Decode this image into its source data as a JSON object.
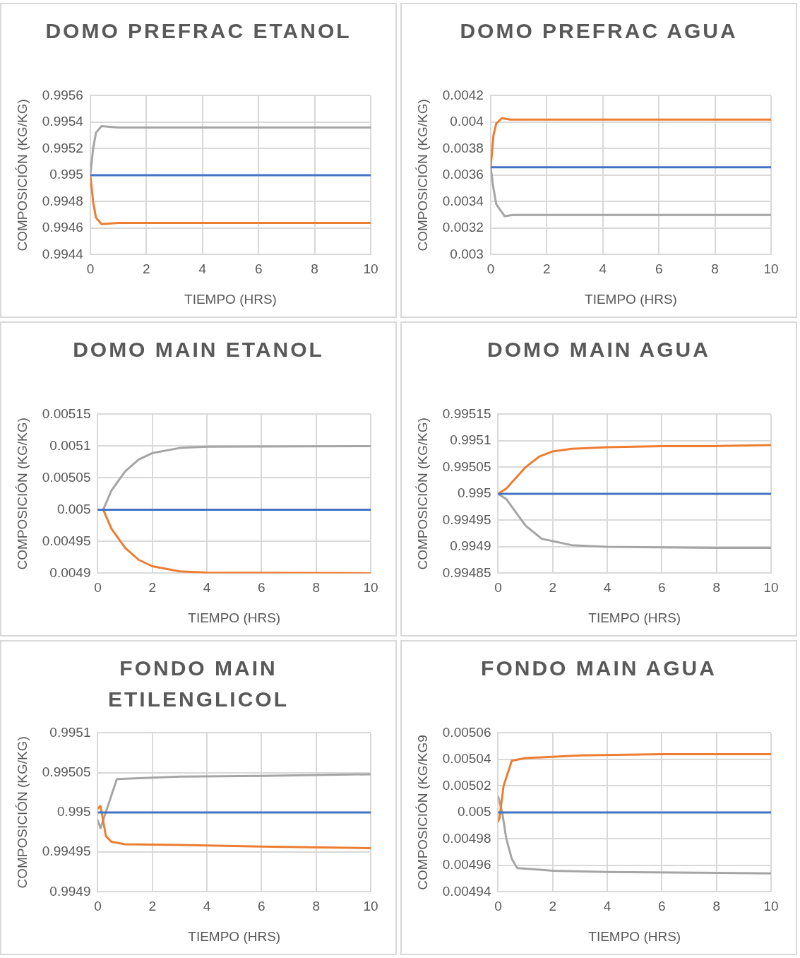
{
  "chart_data": [
    {
      "type": "line",
      "title": "DOMO PREFRAC ETANOL",
      "xlabel": "TIEMPO (HRS)",
      "ylabel": "COMPOSICIÓN (KG/KG)",
      "xlim": [
        0,
        10
      ],
      "xticks": [
        0,
        2,
        4,
        6,
        8,
        10
      ],
      "ylim": [
        0.9944,
        0.9956
      ],
      "yticks": [
        0.9944,
        0.9946,
        0.9948,
        0.995,
        0.9952,
        0.9954,
        0.9956
      ],
      "grid": true,
      "marker": "none",
      "line_style": "solid",
      "series": [
        {
          "color": "#4472c4",
          "x": [
            0,
            10
          ],
          "values": [
            0.995,
            0.995
          ]
        },
        {
          "color": "#ed7d31",
          "x": [
            0,
            0.1,
            0.2,
            0.4,
            1,
            10
          ],
          "values": [
            0.995,
            0.9948,
            0.99468,
            0.99463,
            0.99464,
            0.99464
          ]
        },
        {
          "color": "#a5a5a5",
          "x": [
            0,
            0.1,
            0.2,
            0.4,
            1,
            10
          ],
          "values": [
            0.995,
            0.9952,
            0.99532,
            0.99537,
            0.99536,
            0.99536
          ]
        }
      ]
    },
    {
      "type": "line",
      "title": "DOMO PREFRAC AGUA",
      "xlabel": "TIEMPO (HRS)",
      "ylabel": "COMPOSICIÓN (KG/KG)",
      "xlim": [
        0,
        10
      ],
      "xticks": [
        0,
        2,
        4,
        6,
        8,
        10
      ],
      "ylim": [
        0.003,
        0.0042
      ],
      "yticks": [
        0.003,
        0.0032,
        0.0034,
        0.0036,
        0.0038,
        0.004,
        0.0042
      ],
      "grid": true,
      "marker": "none",
      "line_style": "solid",
      "series": [
        {
          "color": "#4472c4",
          "x": [
            0,
            10
          ],
          "values": [
            0.00366,
            0.00366
          ]
        },
        {
          "color": "#ed7d31",
          "x": [
            0,
            0.1,
            0.2,
            0.4,
            0.7,
            10
          ],
          "values": [
            0.00366,
            0.0039,
            0.00399,
            0.00403,
            0.00402,
            0.00402
          ]
        },
        {
          "color": "#a5a5a5",
          "x": [
            0,
            0.1,
            0.2,
            0.5,
            0.8,
            10
          ],
          "values": [
            0.00366,
            0.0035,
            0.00338,
            0.00329,
            0.0033,
            0.0033
          ]
        }
      ]
    },
    {
      "type": "line",
      "title": "DOMO MAIN ETANOL",
      "xlabel": "TIEMPO (HRS)",
      "ylabel": "COMPOSICIÓN (KG/KG)",
      "xlim": [
        0,
        10
      ],
      "xticks": [
        0,
        2,
        4,
        6,
        8,
        10
      ],
      "ylim": [
        0.0049,
        0.00515
      ],
      "yticks": [
        0.0049,
        0.00495,
        0.005,
        0.00505,
        0.0051,
        0.00515
      ],
      "grid": true,
      "marker": "none",
      "line_style": "solid",
      "series": [
        {
          "color": "#4472c4",
          "x": [
            0,
            10
          ],
          "values": [
            0.005,
            0.005
          ]
        },
        {
          "color": "#ed7d31",
          "x": [
            0,
            0.2,
            0.5,
            1,
            1.5,
            2,
            3,
            4,
            10
          ],
          "values": [
            0.005,
            0.005,
            0.00497,
            0.00494,
            0.004921,
            0.004911,
            0.004903,
            0.004901,
            0.0049
          ]
        },
        {
          "color": "#a5a5a5",
          "x": [
            0,
            0.2,
            0.5,
            1,
            1.5,
            2,
            3,
            4,
            10
          ],
          "values": [
            0.005,
            0.005,
            0.00503,
            0.00506,
            0.005079,
            0.005089,
            0.005097,
            0.005099,
            0.0051
          ]
        }
      ]
    },
    {
      "type": "line",
      "title": "DOMO MAIN AGUA",
      "xlabel": "TIEMPO (HRS)",
      "ylabel": "COMPOSICIÓN (KG/KG)",
      "xlim": [
        0,
        10
      ],
      "xticks": [
        0,
        2,
        4,
        6,
        8,
        10
      ],
      "ylim": [
        0.99485,
        0.99515
      ],
      "yticks": [
        0.99485,
        0.9949,
        0.99495,
        0.995,
        0.99505,
        0.9951,
        0.99515
      ],
      "grid": true,
      "marker": "none",
      "line_style": "solid",
      "series": [
        {
          "color": "#4472c4",
          "x": [
            0,
            10
          ],
          "values": [
            0.995,
            0.995
          ]
        },
        {
          "color": "#ed7d31",
          "x": [
            0,
            0.3,
            1,
            1.5,
            2,
            2.7,
            4,
            6,
            8,
            10
          ],
          "values": [
            0.995,
            0.99501,
            0.99505,
            0.99507,
            0.99508,
            0.995085,
            0.995088,
            0.99509,
            0.99509,
            0.995092
          ]
        },
        {
          "color": "#a5a5a5",
          "x": [
            0,
            0.3,
            1,
            1.6,
            2.7,
            4,
            6,
            8,
            10
          ],
          "values": [
            0.995,
            0.99499,
            0.99494,
            0.994915,
            0.994903,
            0.9949,
            0.994899,
            0.994898,
            0.994898
          ]
        }
      ]
    },
    {
      "type": "line",
      "title": "FONDO MAIN ETILENGLICOL",
      "xlabel": "TIEMPO (HRS)",
      "ylabel": "COMPOSICIÓN (KG/KG)",
      "xlim": [
        0,
        10
      ],
      "xticks": [
        0,
        2,
        4,
        6,
        8,
        10
      ],
      "ylim": [
        0.9949,
        0.9951
      ],
      "yticks": [
        0.9949,
        0.99495,
        0.995,
        0.99505,
        0.9951
      ],
      "grid": true,
      "marker": "none",
      "line_style": "solid",
      "series": [
        {
          "color": "#4472c4",
          "x": [
            0,
            10
          ],
          "values": [
            0.995,
            0.995
          ]
        },
        {
          "color": "#ed7d31",
          "x": [
            0,
            0.1,
            0.3,
            0.5,
            1,
            3,
            6,
            10
          ],
          "values": [
            0.995005,
            0.995008,
            0.99497,
            0.994963,
            0.99496,
            0.994959,
            0.994957,
            0.994955
          ]
        },
        {
          "color": "#a5a5a5",
          "x": [
            0,
            0.1,
            0.7,
            3,
            6,
            10
          ],
          "values": [
            0.99499,
            0.99498,
            0.995042,
            0.995045,
            0.995046,
            0.995048
          ]
        }
      ]
    },
    {
      "type": "line",
      "title": "FONDO MAIN AGUA",
      "xlabel": "TIEMPO (HRS)",
      "ylabel": "COMPOSICIÓN (KG/KG9",
      "xlim": [
        0,
        10
      ],
      "xticks": [
        0,
        2,
        4,
        6,
        8,
        10
      ],
      "ylim": [
        0.00494,
        0.00506
      ],
      "yticks": [
        0.00494,
        0.00496,
        0.00498,
        0.005,
        0.00502,
        0.00504,
        0.00506
      ],
      "grid": true,
      "marker": "none",
      "line_style": "solid",
      "series": [
        {
          "color": "#4472c4",
          "x": [
            0,
            10
          ],
          "values": [
            0.005,
            0.005
          ]
        },
        {
          "color": "#ed7d31",
          "x": [
            0,
            0.05,
            0.2,
            0.5,
            1,
            3,
            6,
            10
          ],
          "values": [
            0.004993,
            0.004996,
            0.00502,
            0.005039,
            0.005041,
            0.005043,
            0.005044,
            0.005044
          ]
        },
        {
          "color": "#a5a5a5",
          "x": [
            0,
            0.15,
            0.3,
            0.5,
            0.7,
            2,
            4,
            10
          ],
          "values": [
            0.005012,
            0.005,
            0.00498,
            0.004965,
            0.004958,
            0.004956,
            0.004955,
            0.004954
          ]
        }
      ]
    }
  ]
}
